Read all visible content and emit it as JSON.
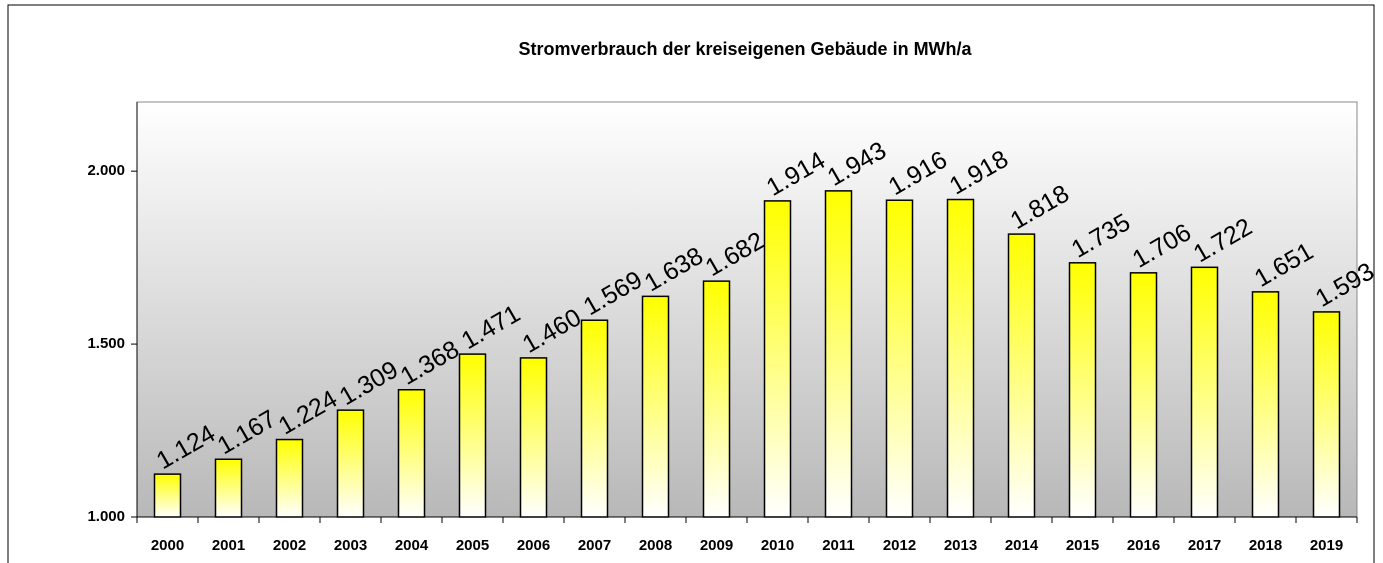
{
  "chart_data": {
    "type": "bar",
    "title": "Stromverbrauch der kreiseigenen Gebäude in   MWh/a",
    "categories": [
      "2000",
      "2001",
      "2002",
      "2003",
      "2004",
      "2005",
      "2006",
      "2007",
      "2008",
      "2009",
      "2010",
      "2011",
      "2012",
      "2013",
      "2014",
      "2015",
      "2016",
      "2017",
      "2018",
      "2019"
    ],
    "values": [
      1124,
      1167,
      1224,
      1309,
      1368,
      1471,
      1460,
      1569,
      1638,
      1682,
      1914,
      1943,
      1916,
      1918,
      1818,
      1735,
      1706,
      1722,
      1651,
      1593
    ],
    "value_labels": [
      "1.124",
      "1.167",
      "1.224",
      "1.309",
      "1.368",
      "1.471",
      "1.460",
      "1.569",
      "1.638",
      "1.682",
      "1.914",
      "1.943",
      "1.916",
      "1.918",
      "1.818",
      "1.735",
      "1.706",
      "1.722",
      "1.651",
      "1.593"
    ],
    "color": "#ffff00",
    "ylim": [
      1000,
      2200
    ],
    "yticks": [
      {
        "value": 1000,
        "label": "1.000"
      },
      {
        "value": 1500,
        "label": "1.500"
      },
      {
        "value": 2000,
        "label": "2.000"
      }
    ]
  }
}
